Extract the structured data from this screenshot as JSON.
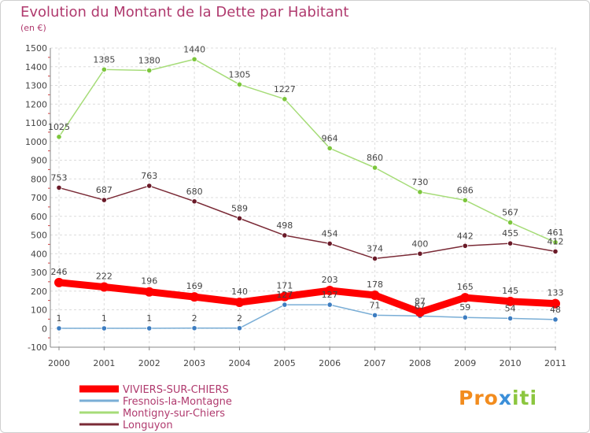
{
  "header": {
    "title": "Evolution du Montant de la Dette par Habitant",
    "unit": "(en €)"
  },
  "logo": {
    "text": "Proxiti",
    "parts": [
      "Pro",
      "x",
      "iti"
    ]
  },
  "chart_data": {
    "type": "line",
    "title": "Evolution du Montant de la Dette par Habitant",
    "subtitle": "(en €)",
    "xlabel": "",
    "ylabel": "",
    "x": [
      "2000",
      "2001",
      "2002",
      "2003",
      "2004",
      "2005",
      "2006",
      "2007",
      "2008",
      "2009",
      "2010",
      "2011"
    ],
    "ylim": [
      -100,
      1500
    ],
    "yticks": [
      -100,
      0,
      100,
      200,
      300,
      400,
      500,
      600,
      700,
      800,
      900,
      1000,
      1100,
      1200,
      1300,
      1400,
      1500
    ],
    "grid": true,
    "legend_position": "bottom-left",
    "series": [
      {
        "name": "VIVIERS-SUR-CHIERS",
        "color": "#ff0000",
        "marker": "#ff0000",
        "emphasis": true,
        "values": [
          246,
          222,
          196,
          169,
          140,
          171,
          203,
          178,
          87,
          165,
          145,
          133
        ]
      },
      {
        "name": "Fresnois-la-Montagne",
        "color": "#7aaed6",
        "marker": "#3d7dc1",
        "values": [
          1,
          1,
          1,
          2,
          2,
          127,
          127,
          71,
          67,
          59,
          54,
          48
        ]
      },
      {
        "name": "Montigny-sur-Chiers",
        "color": "#a6dc78",
        "marker": "#7cc63c",
        "values": [
          1025,
          1385,
          1380,
          1440,
          1305,
          1227,
          964,
          860,
          730,
          686,
          567,
          461
        ]
      },
      {
        "name": "Longuyon",
        "color": "#7a2a36",
        "marker": "#6a1a28",
        "values": [
          753,
          687,
          763,
          680,
          589,
          498,
          454,
          374,
          400,
          442,
          455,
          412
        ]
      }
    ]
  }
}
